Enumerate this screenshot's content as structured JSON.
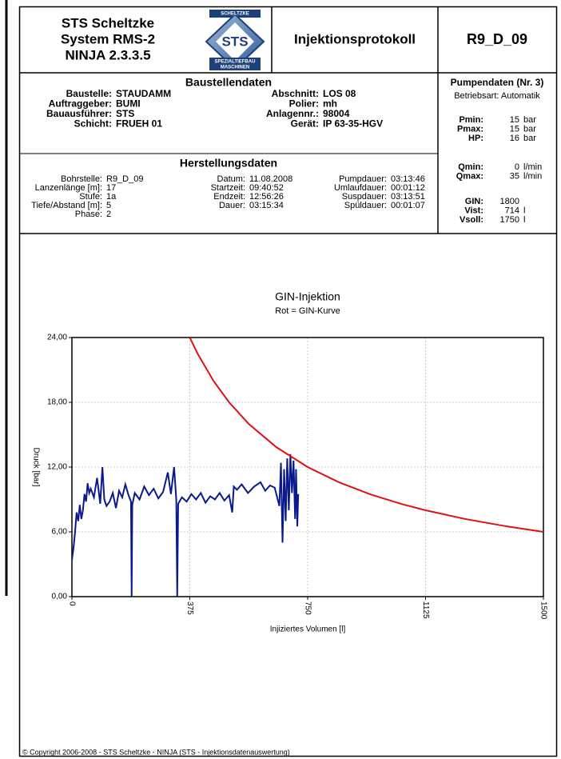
{
  "header": {
    "company": [
      "STS Scheltzke",
      "System RMS-2",
      "NINJA 2.3.3.5"
    ],
    "logo": {
      "top": "SCHELTZKE",
      "mark": "STS",
      "bottom1": "SPEZIALTIEFBAU",
      "bottom2": "MASCHINEN"
    },
    "title": "Injektionsprotokoll",
    "id": "R9_D_09"
  },
  "baustellendaten": {
    "title": "Baustellendaten",
    "left": [
      [
        "Baustelle:",
        "STAUDAMM"
      ],
      [
        "Auftraggeber:",
        "BUMI"
      ],
      [
        "Bauausführer:",
        "STS"
      ],
      [
        "Schicht:",
        "FRUEH 01"
      ]
    ],
    "right": [
      [
        "Abschnitt:",
        "LOS 08"
      ],
      [
        "Polier:",
        "mh"
      ],
      [
        "Anlagennr.:",
        "98004"
      ],
      [
        "Gerät:",
        "IP 63-35-HGV"
      ]
    ]
  },
  "pumpendaten": {
    "title": "Pumpendaten (Nr. 3)",
    "betriebsart": "Betriebsart: Automatik",
    "groups": [
      [
        {
          "label": "Pmin:",
          "value": "15",
          "unit": "bar"
        },
        {
          "label": "Pmax:",
          "value": "15",
          "unit": "bar"
        },
        {
          "label": "HP:",
          "value": "16",
          "unit": "bar"
        }
      ],
      [
        {
          "label": "Qmin:",
          "value": "0",
          "unit": "l/min"
        },
        {
          "label": "Qmax:",
          "value": "35",
          "unit": "l/min"
        }
      ],
      [
        {
          "label": "GIN:",
          "value": "1800"
        },
        {
          "label": "Vist:",
          "value": "714",
          "unit": "l"
        },
        {
          "label": "Vsoll:",
          "value": "1750",
          "unit": "l"
        }
      ]
    ]
  },
  "herstellungsdaten": {
    "title": "Herstellungsdaten",
    "columns": [
      [
        [
          "Bohrstelle:",
          "R9_D_09"
        ],
        [
          "Lanzenlänge [m]:",
          "17"
        ],
        [
          "Stufe:",
          "1a"
        ],
        [
          "Tiefe/Abstand [m]:",
          "5"
        ],
        [
          "Phase:",
          "2"
        ]
      ],
      [
        [
          "Datum:",
          "11.08.2008"
        ],
        [
          "Startzeit:",
          "09:40:52"
        ],
        [
          "Endzeit:",
          "12:56:26"
        ],
        [
          "Dauer:",
          "03:15:34"
        ]
      ],
      [
        [
          "Pumpdauer:",
          "03:13:46"
        ],
        [
          "Umlaufdauer:",
          "00:01:12"
        ],
        [
          "Suspdauer:",
          "03:13:51"
        ],
        [
          "Spüldauer:",
          "00:01:07"
        ]
      ]
    ]
  },
  "chart_data": {
    "type": "line",
    "title": "GIN-Injektion",
    "subtitle": "Rot = GIN-Kurve",
    "x_label": "Injiziertes Volumen [l]",
    "y_label": "Druck [bar]",
    "xlim": [
      0,
      1500
    ],
    "ylim": [
      0,
      24
    ],
    "xticks": [
      0,
      375,
      750,
      1125,
      1500
    ],
    "yticks": [
      {
        "value": 0,
        "label": "0,00"
      },
      {
        "value": 6,
        "label": "6,00"
      },
      {
        "value": 12,
        "label": "12,00"
      },
      {
        "value": 18,
        "label": "18,00"
      },
      {
        "value": 24,
        "label": "24,00"
      }
    ],
    "grid": true,
    "series": [
      {
        "color": "#0a1a8c",
        "x": [
          0,
          5,
          10,
          15,
          20,
          25,
          30,
          35,
          40,
          45,
          50,
          55,
          60,
          70,
          80,
          90,
          97,
          103,
          110,
          120,
          130,
          140,
          150,
          160,
          170,
          180,
          188,
          190,
          192,
          200,
          215,
          230,
          245,
          260,
          275,
          290,
          305,
          315,
          325,
          332,
          335,
          338,
          350,
          365,
          380,
          395,
          410,
          425,
          440,
          455,
          470,
          485,
          500,
          510,
          515,
          525,
          540,
          560,
          580,
          600,
          615,
          630,
          645,
          660,
          665,
          670,
          675,
          680,
          685,
          690,
          695,
          700,
          705,
          710,
          713,
          717,
          720
        ],
        "values": [
          3.4,
          4.5,
          6,
          7.8,
          7,
          8.5,
          7.2,
          8,
          9.5,
          8.8,
          10.5,
          9.6,
          10,
          9.2,
          11,
          8.6,
          12,
          9,
          8.4,
          8.8,
          9.6,
          8.2,
          9.8,
          9.2,
          10.4,
          9.4,
          8.8,
          0,
          8.5,
          9.6,
          9,
          10.2,
          9.4,
          10,
          9.1,
          9.7,
          11.5,
          9.5,
          12,
          9,
          0,
          8.6,
          9.2,
          8.8,
          9.5,
          9,
          9.6,
          8.7,
          9.3,
          9,
          9.6,
          8.9,
          9.4,
          7.8,
          10.2,
          9.9,
          10.4,
          9.6,
          10.2,
          10.6,
          9.8,
          10.3,
          10.1,
          8.4,
          12.4,
          5,
          11.8,
          7,
          12.8,
          8,
          13.2,
          9.6,
          12.6,
          7.2,
          11.8,
          6.5,
          9.5
        ]
      },
      {
        "color": "#e01010",
        "x": [
          375,
          400,
          450,
          500,
          562.5,
          650,
          750,
          850,
          950,
          1050,
          1125,
          1250,
          1375,
          1500
        ],
        "values": [
          24,
          22.5,
          20,
          18,
          16,
          13.85,
          12,
          10.59,
          9.47,
          8.57,
          8,
          7.2,
          6.55,
          6
        ]
      }
    ]
  },
  "footer": "© Copyright 2006-2008 - STS Scheltzke - NINJA (STS - Injektionsdatenauswertung)"
}
